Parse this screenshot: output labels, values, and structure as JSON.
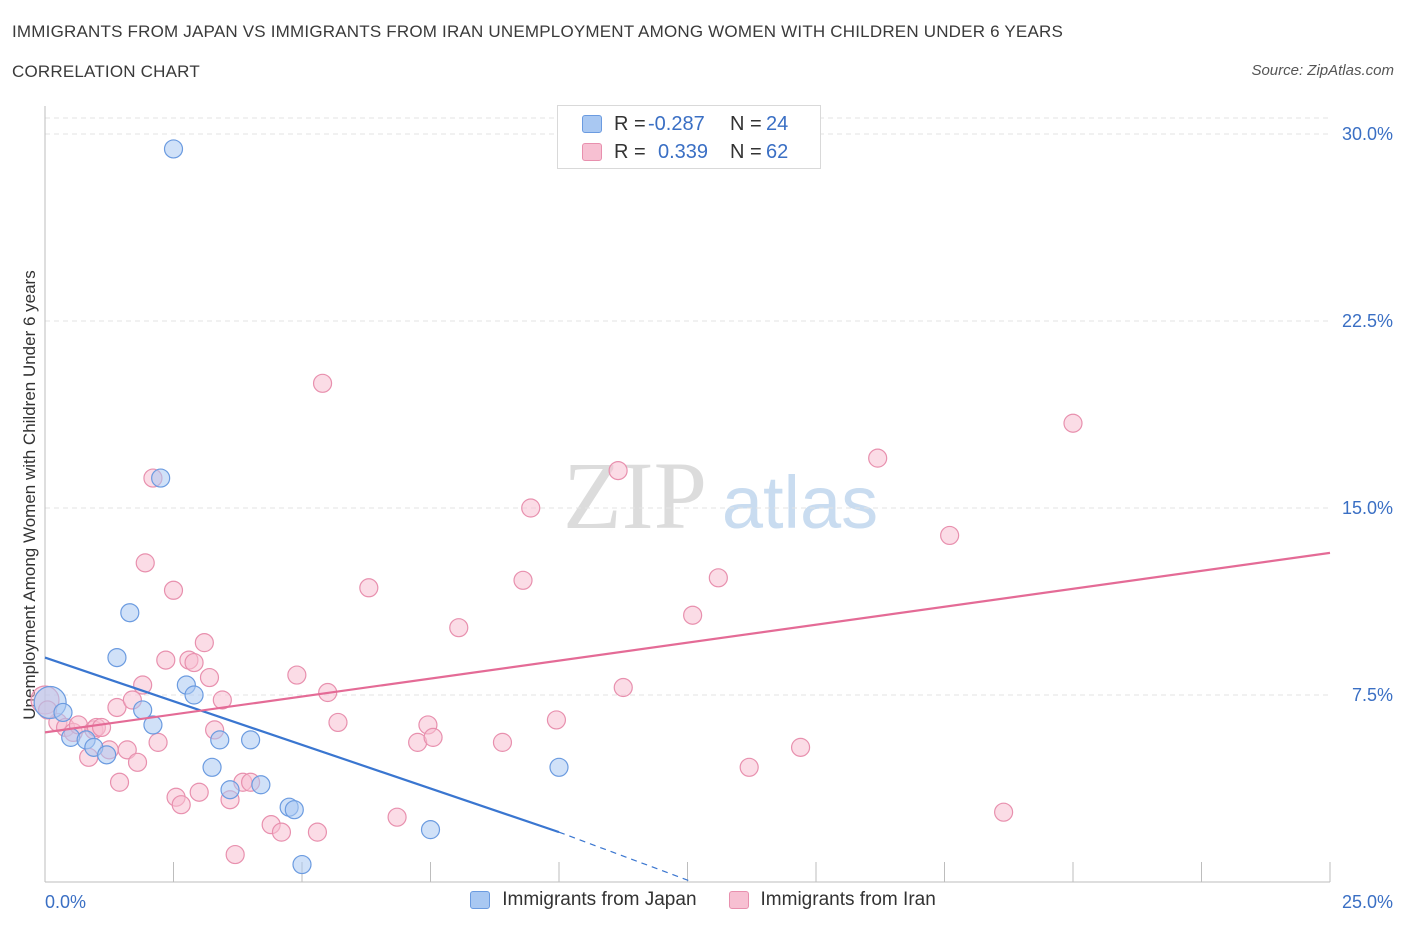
{
  "title": "IMMIGRANTS FROM JAPAN VS IMMIGRANTS FROM IRAN UNEMPLOYMENT AMONG WOMEN WITH CHILDREN UNDER 6 YEARS",
  "subtitle": "CORRELATION CHART",
  "source": "Source: ZipAtlas.com",
  "watermark": {
    "zip": "ZIP",
    "atlas": "atlas"
  },
  "legend_top": [
    {
      "r_label": "R =",
      "r_value": "-0.287",
      "n_label": "N =",
      "n_value": "24",
      "color": "#a9c8f2",
      "stroke": "#6b9be0"
    },
    {
      "r_label": "R =",
      "r_value": "0.339",
      "n_label": "N =",
      "n_value": "62",
      "color": "#f7c0d2",
      "stroke": "#e890ae"
    }
  ],
  "legend_bottom": [
    {
      "label": "Immigrants from Japan",
      "color": "#a9c8f2",
      "stroke": "#6b9be0"
    },
    {
      "label": "Immigrants from Iran",
      "color": "#f7c0d2",
      "stroke": "#e890ae"
    }
  ],
  "chart_data": {
    "type": "scatter",
    "title": "IMMIGRANTS FROM JAPAN VS IMMIGRANTS FROM IRAN UNEMPLOYMENT AMONG WOMEN WITH CHILDREN UNDER 6 YEARS",
    "ylabel": "Unemployment Among Women with Children Under 6 years",
    "xlabel": "",
    "xlim": [
      0,
      25
    ],
    "ylim": [
      0,
      30
    ],
    "x_tick_labels": [
      "0.0%",
      "25.0%"
    ],
    "y_tick_labels": [
      {
        "value": 7.5,
        "label": "7.5%"
      },
      {
        "value": 15,
        "label": "15.0%"
      },
      {
        "value": 22.5,
        "label": "22.5%"
      },
      {
        "value": 30,
        "label": "30.0%"
      }
    ],
    "grid": true,
    "colors": {
      "japan": "#3a76d0",
      "iran": "#e46b96",
      "tick_label": "#3a6fc4"
    },
    "series": [
      {
        "name": "Immigrants from Japan",
        "points": [
          [
            2.5,
            29.4
          ],
          [
            2.25,
            16.2
          ],
          [
            1.65,
            10.8
          ],
          [
            1.4,
            9.0
          ],
          [
            2.75,
            7.9
          ],
          [
            2.9,
            7.5
          ],
          [
            1.9,
            6.9
          ],
          [
            0.1,
            7.2
          ],
          [
            0.35,
            6.8
          ],
          [
            2.1,
            6.3
          ],
          [
            0.5,
            5.8
          ],
          [
            0.8,
            5.7
          ],
          [
            0.95,
            5.4
          ],
          [
            1.2,
            5.1
          ],
          [
            3.4,
            5.7
          ],
          [
            4.0,
            5.7
          ],
          [
            3.25,
            4.6
          ],
          [
            3.6,
            3.7
          ],
          [
            4.2,
            3.9
          ],
          [
            4.75,
            3.0
          ],
          [
            4.85,
            2.9
          ],
          [
            7.5,
            2.1
          ],
          [
            10.0,
            4.6
          ],
          [
            5.0,
            0.7
          ]
        ],
        "trend": {
          "x": [
            0,
            10.0
          ],
          "y": [
            9.0,
            2.0
          ],
          "dashed_to": [
            12.6,
            0
          ]
        }
      },
      {
        "name": "Immigrants from Iran",
        "points": [
          [
            0.0,
            7.3
          ],
          [
            0.25,
            6.4
          ],
          [
            0.4,
            6.2
          ],
          [
            0.55,
            6.0
          ],
          [
            0.65,
            6.3
          ],
          [
            0.85,
            5.0
          ],
          [
            0.95,
            6.1
          ],
          [
            1.0,
            6.2
          ],
          [
            1.1,
            6.2
          ],
          [
            1.25,
            5.3
          ],
          [
            1.4,
            7.0
          ],
          [
            1.45,
            4.0
          ],
          [
            1.6,
            5.3
          ],
          [
            1.7,
            7.3
          ],
          [
            1.8,
            4.8
          ],
          [
            1.9,
            7.9
          ],
          [
            1.95,
            12.8
          ],
          [
            2.1,
            16.2
          ],
          [
            2.2,
            5.6
          ],
          [
            2.35,
            8.9
          ],
          [
            2.5,
            11.7
          ],
          [
            2.55,
            3.4
          ],
          [
            2.65,
            3.1
          ],
          [
            2.8,
            8.9
          ],
          [
            2.9,
            8.8
          ],
          [
            3.0,
            3.6
          ],
          [
            3.1,
            9.6
          ],
          [
            3.2,
            8.2
          ],
          [
            3.3,
            6.1
          ],
          [
            3.45,
            7.3
          ],
          [
            3.6,
            3.3
          ],
          [
            3.7,
            1.1
          ],
          [
            3.85,
            4.0
          ],
          [
            4.0,
            4.0
          ],
          [
            4.4,
            2.3
          ],
          [
            4.6,
            2.0
          ],
          [
            4.9,
            8.3
          ],
          [
            5.3,
            2.0
          ],
          [
            5.4,
            20.0
          ],
          [
            5.5,
            7.6
          ],
          [
            5.7,
            6.4
          ],
          [
            6.3,
            11.8
          ],
          [
            6.85,
            2.6
          ],
          [
            7.25,
            5.6
          ],
          [
            7.45,
            6.3
          ],
          [
            7.55,
            5.8
          ],
          [
            8.05,
            10.2
          ],
          [
            8.9,
            5.6
          ],
          [
            9.3,
            12.1
          ],
          [
            9.45,
            15.0
          ],
          [
            9.95,
            6.5
          ],
          [
            11.15,
            16.5
          ],
          [
            11.25,
            7.8
          ],
          [
            12.6,
            10.7
          ],
          [
            13.1,
            12.2
          ],
          [
            13.7,
            4.6
          ],
          [
            14.7,
            5.4
          ],
          [
            16.2,
            17.0
          ],
          [
            17.6,
            13.9
          ],
          [
            18.65,
            2.8
          ],
          [
            20.0,
            18.4
          ],
          [
            0.05,
            6.9
          ]
        ],
        "trend": {
          "x": [
            0,
            25.0
          ],
          "y": [
            6.0,
            13.2
          ]
        }
      }
    ]
  }
}
